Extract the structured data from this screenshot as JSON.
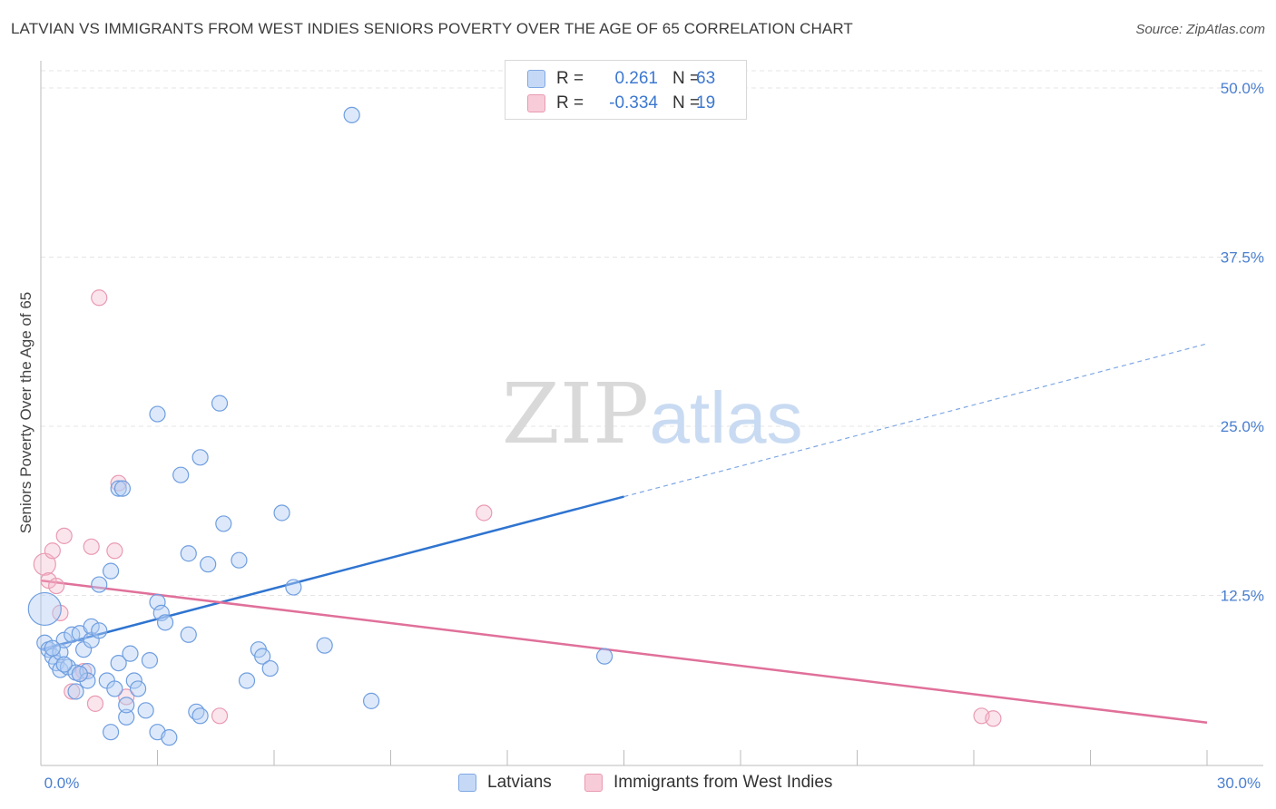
{
  "header": {
    "title": "LATVIAN VS IMMIGRANTS FROM WEST INDIES SENIORS POVERTY OVER THE AGE OF 65 CORRELATION CHART",
    "source": "Source: ZipAtlas.com"
  },
  "watermark": {
    "zip": "ZIP",
    "atlas": "atlas"
  },
  "legend": {
    "rows": [
      {
        "r_label": "R =",
        "r_value": "0.261",
        "n_label": "N =",
        "n_value": "63",
        "color": "#7fa8e3"
      },
      {
        "r_label": "R =",
        "r_value": "-0.334",
        "n_label": "N =",
        "n_value": "19",
        "color": "#e99ab2"
      }
    ]
  },
  "bottom_legend": {
    "items": [
      {
        "label": "Latvians",
        "color": "#7fa8e3"
      },
      {
        "label": "Immigrants from West Indies",
        "color": "#e99ab2"
      }
    ]
  },
  "chart_data": {
    "type": "scatter",
    "title": "LATVIAN VS IMMIGRANTS FROM WEST INDIES SENIORS POVERTY OVER THE AGE OF 65 CORRELATION CHART",
    "xlabel": "",
    "ylabel": "Seniors Poverty Over the Age of 65",
    "xlim": [
      0,
      30
    ],
    "ylim": [
      0,
      50
    ],
    "x_tick_labels": [
      "0.0%",
      "30.0%"
    ],
    "y_ticks": [
      12.5,
      25.0,
      37.5,
      50.0
    ],
    "y_tick_labels": [
      "12.5%",
      "25.0%",
      "37.5%",
      "50.0%"
    ],
    "grid": "horizontal dashed",
    "series": [
      {
        "name": "Latvians",
        "color": "#7fa8e3",
        "trend": {
          "x0": 0,
          "y0": 8.5,
          "x1": 15,
          "y1": 19.8,
          "x_dash_end": 30,
          "y_dash_end": 31.1
        },
        "points": [
          [
            0.1,
            11.5
          ],
          [
            0.1,
            9.0
          ],
          [
            0.2,
            8.5
          ],
          [
            0.3,
            8.0
          ],
          [
            0.4,
            7.5
          ],
          [
            0.5,
            7.0
          ],
          [
            0.5,
            8.3
          ],
          [
            0.6,
            9.2
          ],
          [
            0.7,
            7.2
          ],
          [
            0.8,
            9.6
          ],
          [
            0.9,
            6.8
          ],
          [
            0.9,
            5.4
          ],
          [
            1.0,
            9.7
          ],
          [
            1.1,
            8.5
          ],
          [
            1.2,
            6.9
          ],
          [
            1.3,
            9.2
          ],
          [
            1.3,
            10.2
          ],
          [
            1.5,
            9.9
          ],
          [
            1.5,
            13.3
          ],
          [
            1.7,
            6.2
          ],
          [
            1.8,
            14.3
          ],
          [
            1.9,
            5.6
          ],
          [
            2.0,
            7.5
          ],
          [
            2.0,
            20.4
          ],
          [
            2.1,
            20.4
          ],
          [
            2.2,
            3.5
          ],
          [
            2.3,
            8.2
          ],
          [
            2.4,
            6.2
          ],
          [
            2.5,
            5.6
          ],
          [
            2.7,
            4.0
          ],
          [
            2.8,
            7.7
          ],
          [
            3.0,
            12.0
          ],
          [
            3.0,
            2.4
          ],
          [
            3.0,
            25.9
          ],
          [
            3.1,
            11.2
          ],
          [
            3.2,
            10.5
          ],
          [
            3.3,
            2.0
          ],
          [
            3.6,
            21.4
          ],
          [
            3.8,
            9.6
          ],
          [
            3.8,
            15.6
          ],
          [
            4.0,
            3.9
          ],
          [
            4.1,
            3.6
          ],
          [
            4.1,
            22.7
          ],
          [
            4.3,
            14.8
          ],
          [
            4.6,
            26.7
          ],
          [
            4.7,
            17.8
          ],
          [
            5.1,
            15.1
          ],
          [
            5.3,
            6.2
          ],
          [
            5.6,
            8.5
          ],
          [
            5.7,
            8.0
          ],
          [
            5.9,
            7.1
          ],
          [
            6.2,
            18.6
          ],
          [
            6.5,
            13.1
          ],
          [
            7.3,
            8.8
          ],
          [
            8.0,
            48.0
          ],
          [
            8.5,
            4.7
          ],
          [
            14.5,
            8.0
          ],
          [
            1.8,
            2.4
          ],
          [
            2.2,
            4.4
          ],
          [
            1.2,
            6.2
          ],
          [
            0.3,
            8.6
          ],
          [
            0.6,
            7.4
          ],
          [
            1.0,
            6.7
          ]
        ]
      },
      {
        "name": "Immigrants from West Indies",
        "color": "#e99ab2",
        "trend": {
          "x0": 0,
          "y0": 13.6,
          "x1": 30,
          "y1": 3.1
        },
        "points": [
          [
            0.1,
            14.8
          ],
          [
            0.2,
            13.6
          ],
          [
            0.3,
            15.8
          ],
          [
            0.4,
            13.2
          ],
          [
            0.5,
            11.2
          ],
          [
            0.6,
            16.9
          ],
          [
            0.8,
            5.4
          ],
          [
            1.0,
            6.7
          ],
          [
            1.1,
            6.9
          ],
          [
            1.3,
            16.1
          ],
          [
            1.4,
            4.5
          ],
          [
            1.5,
            34.5
          ],
          [
            1.9,
            15.8
          ],
          [
            2.0,
            20.8
          ],
          [
            2.2,
            5.0
          ],
          [
            4.6,
            3.6
          ],
          [
            11.4,
            18.6
          ],
          [
            24.2,
            3.6
          ],
          [
            24.5,
            3.4
          ]
        ]
      }
    ]
  }
}
